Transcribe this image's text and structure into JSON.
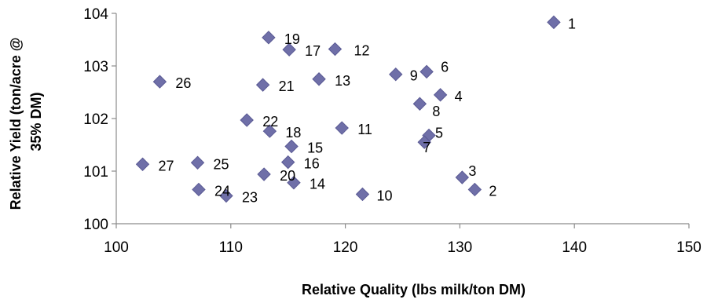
{
  "chart_data": {
    "type": "scatter",
    "title": "",
    "xlabel": "Relative Quality (lbs milk/ton DM)",
    "ylabel_lines": [
      "Relative Yield (ton/acre @",
      "35% DM)"
    ],
    "xlim": [
      100,
      150
    ],
    "ylim": [
      100,
      104
    ],
    "xticks": [
      100,
      110,
      120,
      130,
      140,
      150
    ],
    "yticks": [
      100,
      101,
      102,
      103,
      104
    ],
    "grid": false,
    "marker": "diamond",
    "marker_color": "#6f6fa8",
    "points": [
      {
        "label": "1",
        "x": 138.2,
        "y": 103.83
      },
      {
        "label": "2",
        "x": 131.3,
        "y": 100.65
      },
      {
        "label": "3",
        "x": 130.2,
        "y": 100.88
      },
      {
        "label": "4",
        "x": 128.3,
        "y": 102.45
      },
      {
        "label": "5",
        "x": 127.3,
        "y": 101.68
      },
      {
        "label": "6",
        "x": 127.1,
        "y": 102.89
      },
      {
        "label": "7",
        "x": 126.9,
        "y": 101.55
      },
      {
        "label": "8",
        "x": 126.5,
        "y": 102.28
      },
      {
        "label": "9",
        "x": 124.4,
        "y": 102.84
      },
      {
        "label": "10",
        "x": 121.5,
        "y": 100.56
      },
      {
        "label": "11",
        "x": 119.7,
        "y": 101.82
      },
      {
        "label": "12",
        "x": 119.1,
        "y": 103.32
      },
      {
        "label": "13",
        "x": 117.7,
        "y": 102.75
      },
      {
        "label": "14",
        "x": 115.5,
        "y": 100.78
      },
      {
        "label": "15",
        "x": 115.3,
        "y": 101.47
      },
      {
        "label": "16",
        "x": 115.0,
        "y": 101.17
      },
      {
        "label": "17",
        "x": 115.1,
        "y": 103.31
      },
      {
        "label": "18",
        "x": 113.4,
        "y": 101.76
      },
      {
        "label": "19",
        "x": 113.3,
        "y": 103.54
      },
      {
        "label": "20",
        "x": 112.9,
        "y": 100.94
      },
      {
        "label": "21",
        "x": 112.8,
        "y": 102.64
      },
      {
        "label": "22",
        "x": 111.4,
        "y": 101.97
      },
      {
        "label": "23",
        "x": 109.6,
        "y": 100.53
      },
      {
        "label": "24",
        "x": 107.2,
        "y": 100.65
      },
      {
        "label": "25",
        "x": 107.1,
        "y": 101.16
      },
      {
        "label": "26",
        "x": 103.8,
        "y": 102.7
      },
      {
        "label": "27",
        "x": 102.3,
        "y": 101.13
      }
    ]
  }
}
